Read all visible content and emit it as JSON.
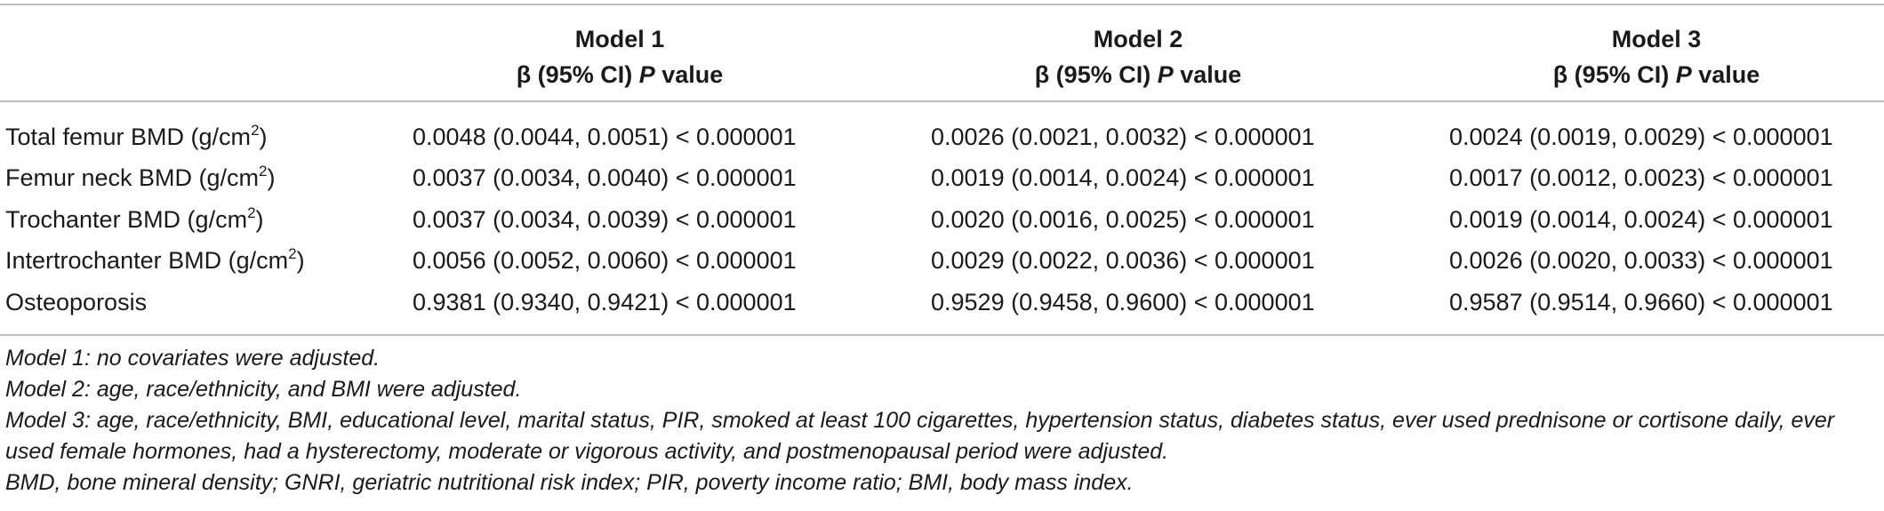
{
  "table": {
    "headers": [
      {
        "model": "Model 1",
        "stat_prefix": "β (95% CI) ",
        "stat_p": "P",
        "stat_suffix": " value"
      },
      {
        "model": "Model 2",
        "stat_prefix": "β (95% CI) ",
        "stat_p": "P",
        "stat_suffix": " value"
      },
      {
        "model": "Model 3",
        "stat_prefix": "β (95% CI) ",
        "stat_p": "P",
        "stat_suffix": " value"
      }
    ],
    "rows": [
      {
        "label": "Total femur BMD (g/cm",
        "sup": "2",
        "close": ")",
        "values": [
          "0.0048 (0.0044, 0.0051) < 0.000001",
          "0.0026 (0.0021, 0.0032) < 0.000001",
          "0.0024 (0.0019, 0.0029) < 0.000001"
        ]
      },
      {
        "label": "Femur neck BMD (g/cm",
        "sup": "2",
        "close": ")",
        "values": [
          "0.0037 (0.0034, 0.0040) < 0.000001",
          "0.0019 (0.0014, 0.0024) < 0.000001",
          "0.0017 (0.0012, 0.0023) < 0.000001"
        ]
      },
      {
        "label": "Trochanter BMD (g/cm",
        "sup": "2",
        "close": ")",
        "values": [
          "0.0037 (0.0034, 0.0039) < 0.000001",
          "0.0020 (0.0016, 0.0025) < 0.000001",
          "0.0019 (0.0014, 0.0024) < 0.000001"
        ]
      },
      {
        "label": "Intertrochanter BMD (g/cm",
        "sup": "2",
        "close": ")",
        "values": [
          "0.0056 (0.0052, 0.0060) < 0.000001",
          "0.0029 (0.0022, 0.0036) < 0.000001",
          "0.0026 (0.0020, 0.0033) < 0.000001"
        ]
      },
      {
        "label": "Osteoporosis",
        "sup": "",
        "close": "",
        "values": [
          "0.9381 (0.9340, 0.9421) < 0.000001",
          "0.9529 (0.9458, 0.9600) < 0.000001",
          "0.9587 (0.9514, 0.9660) < 0.000001"
        ]
      }
    ]
  },
  "footnotes": [
    "Model 1: no covariates were adjusted.",
    "Model 2: age, race/ethnicity, and BMI were adjusted.",
    "Model 3: age, race/ethnicity, BMI, educational level, marital status, PIR, smoked at least 100 cigarettes, hypertension status, diabetes status, ever used prednisone or cortisone daily, ever used female hormones, had a hysterectomy, moderate or vigorous activity, and postmenopausal period were adjusted.",
    "BMD, bone mineral density; GNRI, geriatric nutritional risk index; PIR, poverty income ratio; BMI, body mass index."
  ]
}
